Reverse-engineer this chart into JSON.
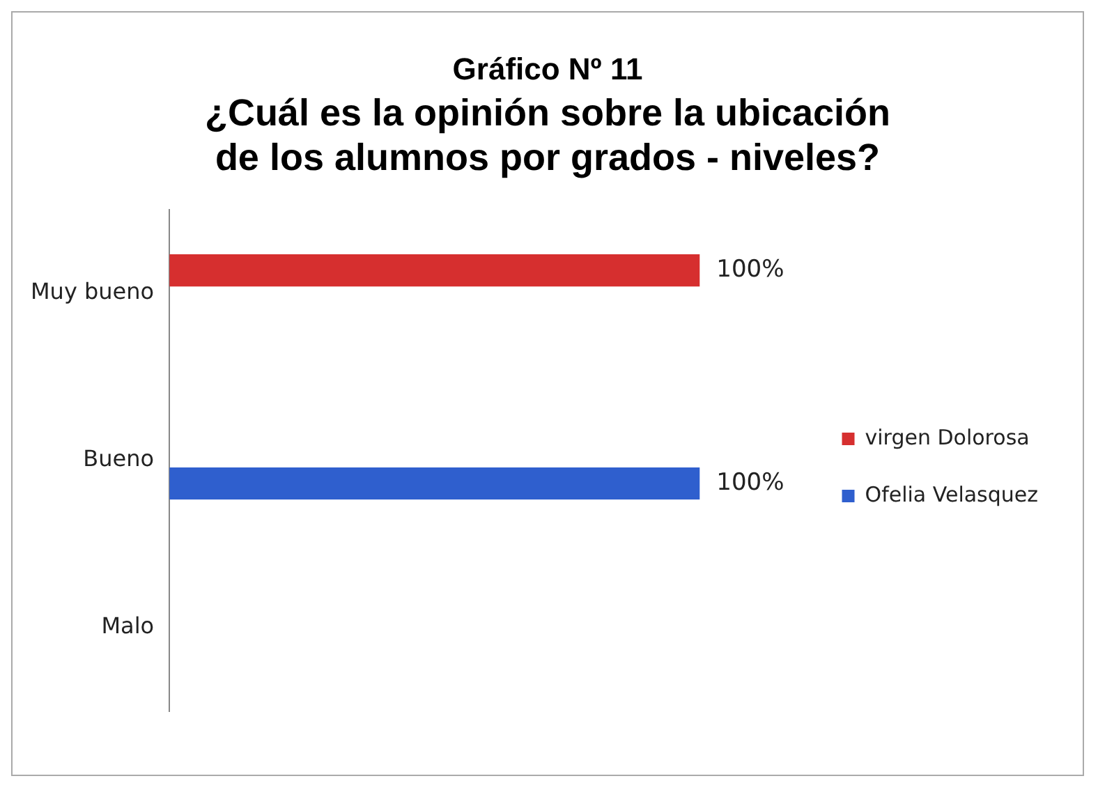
{
  "chart_data": {
    "type": "bar",
    "orientation": "horizontal",
    "title": "Gráfico Nº 11",
    "subtitle": "¿Cuál es la opinión sobre la ubicación de los alumnos por grados - niveles?",
    "categories": [
      "Muy bueno",
      "Bueno",
      "Malo"
    ],
    "series": [
      {
        "name": "virgen Dolorosa",
        "color": "#d62f2f",
        "values": [
          100,
          0,
          0
        ],
        "value_labels": [
          "100%",
          null,
          null
        ]
      },
      {
        "name": "Ofelia Velasquez",
        "color": "#2f5fce",
        "values": [
          0,
          100,
          0
        ],
        "value_labels": [
          null,
          "100%",
          null
        ]
      }
    ],
    "legend": "right",
    "grid": false,
    "tick_labels": "y"
  }
}
